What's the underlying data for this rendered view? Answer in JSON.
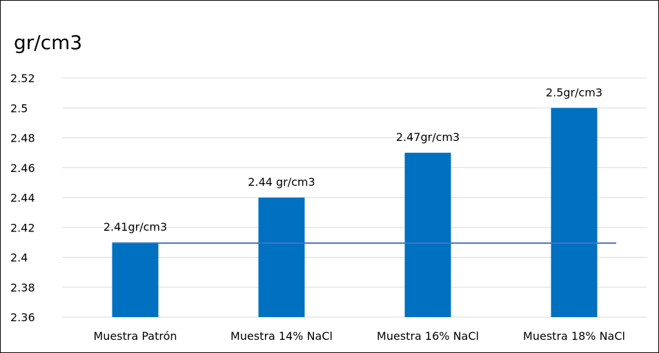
{
  "chart_data": {
    "type": "bar",
    "title": "gr/cm3",
    "xlabel": "",
    "ylabel": "",
    "categories": [
      "Muestra Patrón",
      "Muestra 14% NaCl",
      "Muestra 16% NaCl",
      "Muestra 18% NaCl"
    ],
    "values": [
      2.41,
      2.44,
      2.47,
      2.5
    ],
    "data_labels": [
      "2.41gr/cm3",
      "2.44 gr/cm3",
      "2.47gr/cm3",
      "2.5gr/cm3"
    ],
    "ylim": [
      2.36,
      2.52
    ],
    "yticks": [
      2.36,
      2.38,
      2.4,
      2.42,
      2.44,
      2.46,
      2.48,
      2.5,
      2.52
    ],
    "ytick_labels": [
      "2.36",
      "2.38",
      "2.4",
      "2.42",
      "2.44",
      "2.46",
      "2.48",
      "2.5",
      "2.52"
    ],
    "reference_line": {
      "value": 2.41
    },
    "grid": true,
    "legend": "none",
    "colors": {
      "bar": "#0070C0",
      "reference_line": "#4472C4",
      "grid": "#D9D9D9",
      "text": "#000000"
    }
  }
}
